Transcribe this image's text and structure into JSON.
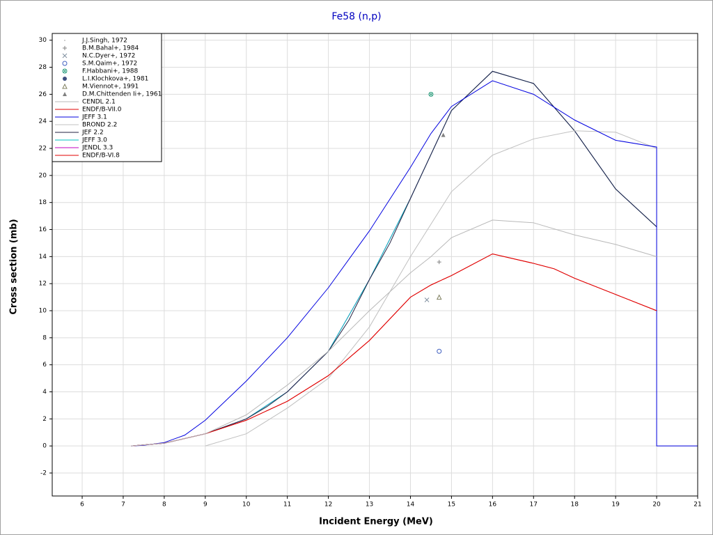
{
  "chart_data": {
    "type": "line",
    "title": "Fe58 (n,p)",
    "x_label": "Incident Energy (MeV)",
    "y_label": "Cross section (mb)",
    "xlim": [
      5.27,
      21
    ],
    "ylim": [
      -3.7,
      30.5
    ],
    "xticks": [
      6,
      7,
      8,
      9,
      10,
      11,
      12,
      13,
      14,
      15,
      16,
      17,
      18,
      19,
      20,
      21
    ],
    "yticks": [
      -2,
      0,
      2,
      4,
      6,
      8,
      10,
      12,
      14,
      16,
      18,
      20,
      22,
      24,
      26,
      28,
      30
    ],
    "grid": true,
    "legend": "top-left",
    "series": [
      {
        "name": "J.J.Singh, 1972",
        "kind": "marker",
        "marker": "dot",
        "color": "#c0c0c0",
        "x": [],
        "values": []
      },
      {
        "name": "B.M.Bahal+, 1984",
        "kind": "marker",
        "marker": "plus",
        "color": "#808080",
        "x": [
          14.7
        ],
        "values": [
          13.6
        ]
      },
      {
        "name": "N.C.Dyer+, 1972",
        "kind": "marker",
        "marker": "cross",
        "color": "#8090a0",
        "x": [
          14.4
        ],
        "values": [
          10.8
        ]
      },
      {
        "name": "S.M.Qaim+, 1972",
        "kind": "marker",
        "marker": "circle",
        "color": "#4060c0",
        "x": [
          14.7
        ],
        "values": [
          7.0
        ]
      },
      {
        "name": "F.Habbani+, 1988",
        "kind": "marker",
        "marker": "circle-cross",
        "color": "#30a080",
        "x": [
          14.5
        ],
        "values": [
          26.0
        ]
      },
      {
        "name": "L.I.Klochkova+, 1981",
        "kind": "marker",
        "marker": "filled-circle",
        "color": "#405080",
        "x": [],
        "values": []
      },
      {
        "name": "M.Viennot+, 1991",
        "kind": "marker",
        "marker": "triangle",
        "color": "#808060",
        "x": [
          14.7
        ],
        "values": [
          11.0
        ]
      },
      {
        "name": "D.M.Chittenden Ii+, 1961",
        "kind": "marker",
        "marker": "filled-triangle",
        "color": "#808080",
        "x": [
          14.8
        ],
        "values": [
          23.0
        ]
      },
      {
        "name": "CENDL 2.1",
        "kind": "line",
        "color": "#b8b8b8",
        "x": [
          7.2,
          8,
          9,
          10,
          11,
          12,
          13,
          14,
          14.5,
          15,
          16,
          17,
          18,
          19,
          20
        ],
        "values": [
          0,
          0.2,
          0.9,
          2.3,
          4.5,
          7.0,
          10.0,
          12.8,
          14.0,
          15.4,
          16.7,
          16.5,
          15.6,
          14.9,
          14.0
        ]
      },
      {
        "name": "ENDF/B-VII.0",
        "kind": "line",
        "color": "#e00000",
        "x": [
          7.2,
          8,
          9,
          10,
          11,
          12,
          13,
          14,
          14.5,
          15,
          16,
          17,
          17.5,
          18,
          19,
          20
        ],
        "values": [
          0,
          0.2,
          0.9,
          1.9,
          3.3,
          5.2,
          7.8,
          11.0,
          11.9,
          12.6,
          14.2,
          13.5,
          13.1,
          12.4,
          11.2,
          10.0
        ]
      },
      {
        "name": "JEFF 3.1",
        "kind": "line",
        "color": "#0000e0",
        "x": [
          7.2,
          7.5,
          8,
          8.5,
          9,
          10,
          11,
          12,
          13,
          14,
          14.5,
          15,
          16,
          17,
          18,
          19,
          20,
          20,
          21
        ],
        "values": [
          0,
          0.05,
          0.25,
          0.8,
          1.9,
          4.8,
          8.0,
          11.7,
          15.9,
          20.6,
          23.1,
          25.1,
          27.0,
          26.0,
          24.1,
          22.6,
          22.1,
          0,
          0
        ]
      },
      {
        "name": "BROND 2.2",
        "kind": "line",
        "color": "#c0c0c0",
        "x": [
          9,
          10,
          11,
          12,
          13,
          14,
          15,
          16,
          17,
          18,
          19,
          20
        ],
        "values": [
          0,
          0.9,
          2.8,
          5.0,
          8.8,
          14.0,
          18.8,
          21.5,
          22.7,
          23.3,
          23.2,
          22.0
        ]
      },
      {
        "name": "JEF 2.2",
        "kind": "line",
        "color": "#202040",
        "x": [
          7.2,
          8,
          9,
          10,
          10.5,
          11,
          12,
          12.5,
          13,
          13.5,
          14,
          15,
          16,
          17,
          18,
          19,
          20
        ],
        "values": [
          0,
          0.2,
          0.9,
          2.0,
          2.9,
          4.0,
          7.0,
          9.3,
          12.3,
          15.0,
          18.3,
          24.8,
          27.7,
          26.8,
          23.3,
          19.0,
          16.2
        ]
      },
      {
        "name": "JEFF 3.0",
        "kind": "line",
        "color": "#00c0c0",
        "x": [
          7.2,
          8,
          9,
          10,
          11,
          12,
          13,
          14,
          15,
          16,
          17,
          18,
          19,
          20
        ],
        "values": [
          0,
          0.2,
          0.9,
          2.0,
          4.0,
          7.0,
          12.3,
          18.3,
          24.8,
          27.7,
          26.8,
          23.3,
          19.0,
          16.2
        ]
      },
      {
        "name": "JENDL 3.3",
        "kind": "line",
        "color": "#c000c0",
        "x": [
          7.2,
          8,
          9,
          10,
          11,
          12,
          13,
          14,
          15,
          16,
          17,
          18,
          19,
          20
        ],
        "values": [
          0,
          0.2,
          0.9,
          2.0,
          4.0,
          7.0,
          12.3,
          18.3,
          24.8,
          27.7,
          26.8,
          23.3,
          19.0,
          16.2
        ]
      },
      {
        "name": "ENDF/B-VI.8",
        "kind": "line",
        "color": "#e00000",
        "x": [
          7.2,
          8,
          9,
          10,
          11,
          12,
          13,
          14,
          14.5,
          15,
          16,
          17,
          17.5,
          18,
          19,
          20
        ],
        "values": [
          0,
          0.2,
          0.9,
          1.9,
          3.3,
          5.2,
          7.8,
          11.0,
          11.9,
          12.6,
          14.2,
          13.5,
          13.1,
          12.4,
          11.2,
          10.0
        ]
      }
    ]
  }
}
